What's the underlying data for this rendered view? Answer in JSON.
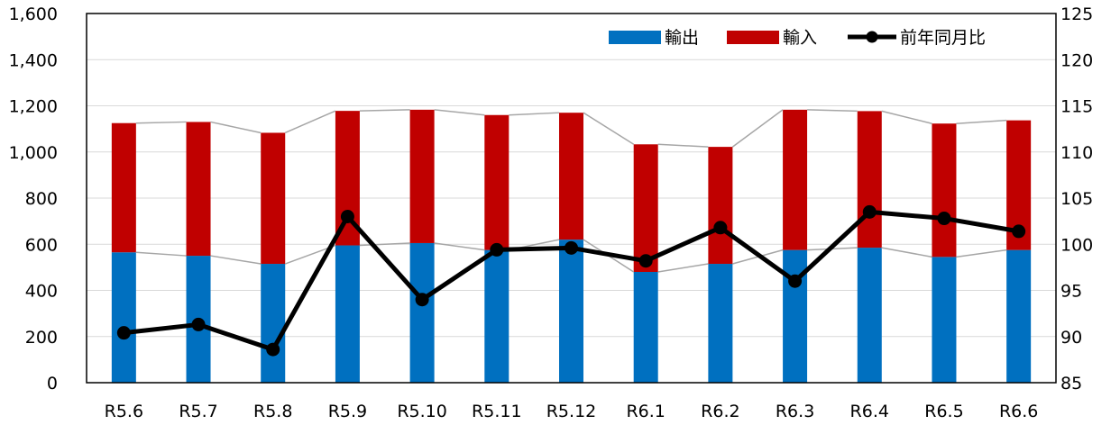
{
  "chart_data": {
    "type": "bar",
    "subtype": "stacked-bar-with-line-secondary-axis",
    "categories": [
      "R5.6",
      "R5.7",
      "R5.8",
      "R5.9",
      "R5.10",
      "R5.11",
      "R5.12",
      "R6.1",
      "R6.2",
      "R6.3",
      "R6.4",
      "R6.5",
      "R6.6"
    ],
    "series": [
      {
        "name": "輸出",
        "kind": "bar",
        "axis": "left",
        "color": "#0070C0",
        "values": [
          565,
          550,
          515,
          595,
          605,
          575,
          620,
          480,
          515,
          575,
          585,
          545,
          575
        ]
      },
      {
        "name": "輸入",
        "kind": "bar",
        "axis": "left",
        "color": "#C00000",
        "values": [
          560,
          580,
          568,
          583,
          578,
          585,
          550,
          553,
          507,
          608,
          592,
          578,
          562
        ]
      },
      {
        "name": "前年同月比",
        "kind": "line",
        "axis": "right",
        "color": "#000000",
        "values": [
          90.4,
          91.3,
          88.6,
          103.0,
          94.0,
          99.4,
          99.6,
          98.2,
          101.8,
          96.0,
          103.5,
          102.8,
          101.4
        ]
      }
    ],
    "y_left": {
      "ylim": [
        0,
        1600
      ],
      "ticks": [
        0,
        200,
        400,
        600,
        800,
        1000,
        1200,
        1400,
        1600
      ],
      "tick_labels": [
        "0",
        "200",
        "400",
        "600",
        "800",
        "1,000",
        "1,200",
        "1,400",
        "1,600"
      ]
    },
    "y_right": {
      "ylim": [
        85,
        125
      ],
      "ticks": [
        85,
        90,
        95,
        100,
        105,
        110,
        115,
        120,
        125
      ],
      "tick_labels": [
        "85",
        "90",
        "95",
        "100",
        "105",
        "110",
        "115",
        "120",
        "125"
      ]
    },
    "gridlines": true,
    "series_lines": true,
    "legend_position": "top-right"
  }
}
